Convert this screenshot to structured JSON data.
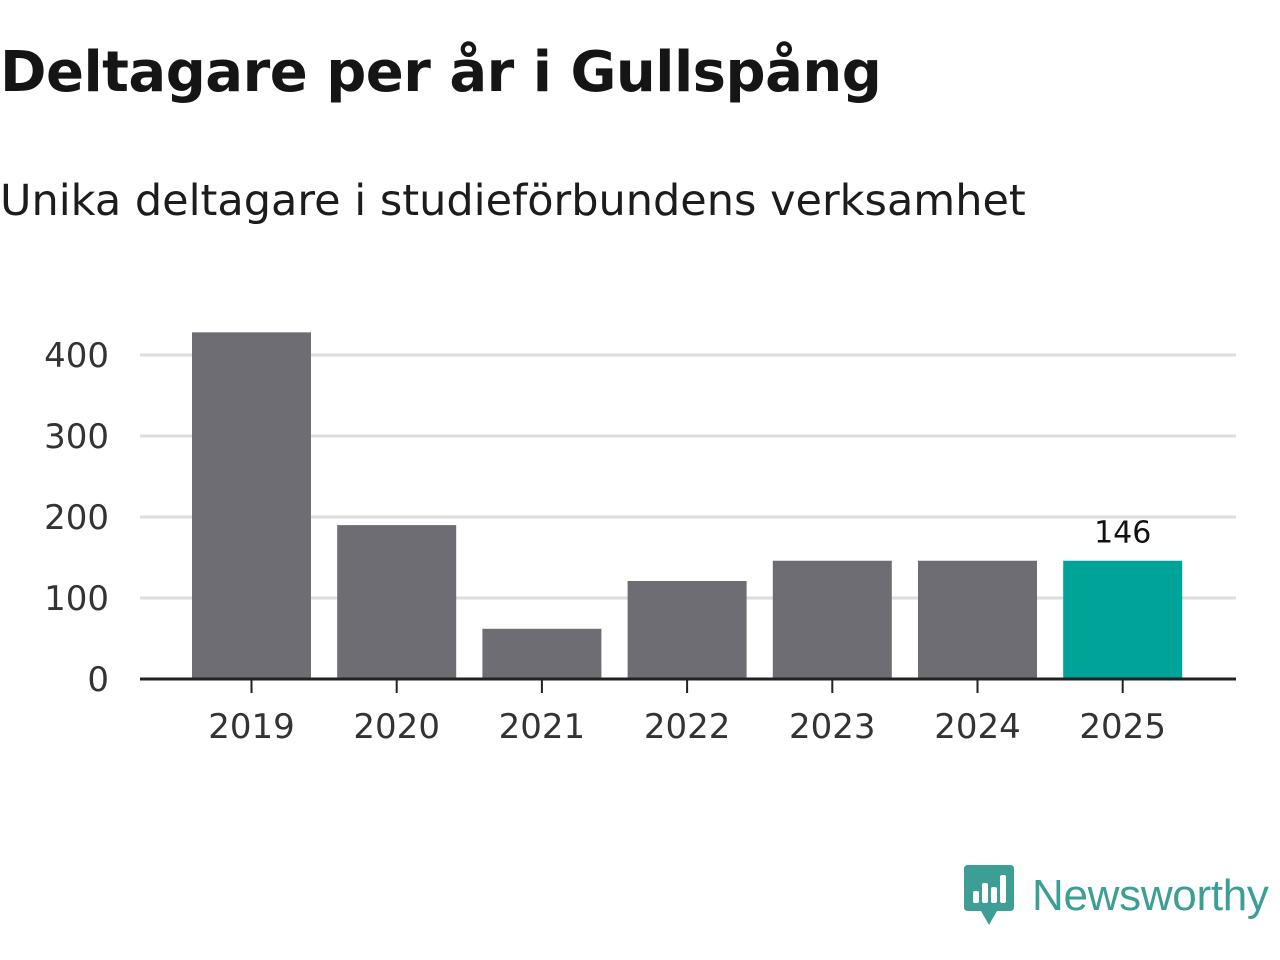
{
  "title": "Deltagare per år i Gullspång",
  "subtitle": "Unika deltagare i studieförbundens verksamhet",
  "brand": {
    "name": "Newsworthy",
    "icon": "newsworthy-logo-icon",
    "color": "#3d9e95"
  },
  "colors": {
    "bar": "#6e6d73",
    "highlight": "#00a398",
    "grid": "#dddddd",
    "axis": "#222222"
  },
  "chart_data": {
    "type": "bar",
    "categories": [
      "2019",
      "2020",
      "2021",
      "2022",
      "2023",
      "2024",
      "2025"
    ],
    "values": [
      428,
      190,
      62,
      121,
      146,
      146,
      146
    ],
    "highlight_index": 6,
    "data_labels": [
      {
        "index": 6,
        "text": "146"
      }
    ],
    "yticks": [
      0,
      100,
      200,
      300,
      400
    ],
    "ylim": [
      0,
      440
    ],
    "grid": true,
    "xlabel": "",
    "ylabel": ""
  }
}
